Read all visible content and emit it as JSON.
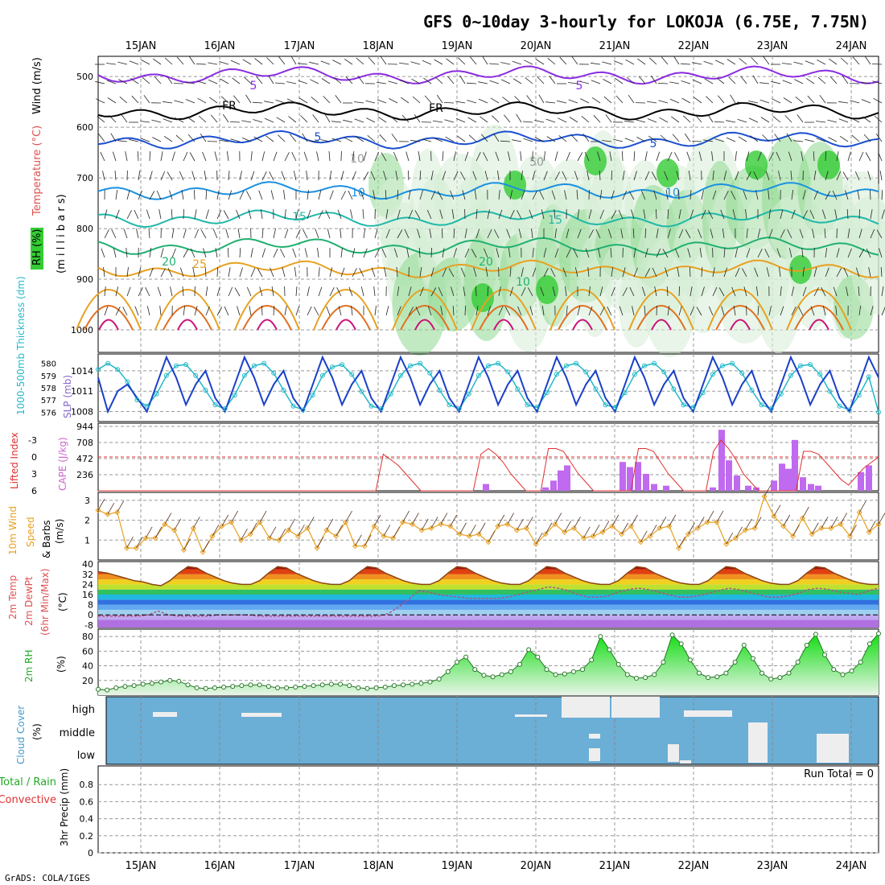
{
  "title": "GFS 0~10day 3-hourly for LOKOJA (6.75E, 7.75N)",
  "credit": "GrADS: COLA/IGES",
  "colors": {
    "rh_green": "#33cc33",
    "temp_orange": "#e8a020",
    "temp_blue": "#1a4fd0",
    "temp_purple": "#8a2be2",
    "slp_blue": "#1a3fc8",
    "thickness_cyan": "#22b8c8",
    "cape_violet": "#bf6aef",
    "lifted_red": "#e03030",
    "wind_orange": "#e8a020",
    "rh2m_green": "#22cc22",
    "cloud_bg": "#6baed6",
    "cloud_fill": "#f4f0f8",
    "grid": "#999999"
  },
  "chart_data": [
    {
      "type": "contour",
      "panel": "upper-air",
      "title": "",
      "ylabel_parts": [
        {
          "text": "RH (%)",
          "color": "#33aa33"
        },
        {
          "text": "Temperature (°C)",
          "color": "#e05050"
        },
        {
          "text": "Wind (m/s)",
          "color": "#000000"
        }
      ],
      "axis_unit": "(m i l l i b a r s)",
      "x_dates": [
        "15JAN",
        "16JAN",
        "17JAN",
        "18JAN",
        "19JAN",
        "20JAN",
        "21JAN",
        "22JAN",
        "23JAN",
        "24JAN"
      ],
      "y_levels": [
        500,
        600,
        700,
        800,
        900,
        1000
      ],
      "ylim": [
        460,
        1000
      ],
      "contour_labels": [
        "5",
        "FR",
        "FR",
        "5",
        "5",
        "5",
        "10",
        "10",
        "10",
        "15",
        "15",
        "20",
        "20",
        "25",
        "50",
        "10"
      ],
      "series": [
        {
          "name": "isotherm -5",
          "color": "#8a2be2",
          "level_mb": 497
        },
        {
          "name": "freezing level",
          "color": "#000000",
          "level_mb": 568
        },
        {
          "name": "isotherm 5",
          "color": "#1a4fd0",
          "level_mb": 625
        },
        {
          "name": "isotherm 10",
          "color": "#1a90e0",
          "level_mb": 725
        },
        {
          "name": "isotherm 15",
          "color": "#20b8a8",
          "level_mb": 780
        },
        {
          "name": "isotherm 20",
          "color": "#20b070",
          "level_mb": 835
        },
        {
          "name": "isotherm 25",
          "color": "#e8a020",
          "level_mb": 880
        }
      ]
    },
    {
      "type": "line",
      "panel": "slp-thickness",
      "ylabel_left": "1000-500mb Thickness (dm)",
      "ylabel_right": "SLP (mb)",
      "y_left_ticks": [
        576,
        577,
        578,
        579,
        580
      ],
      "y_right_ticks": [
        1008,
        1011,
        1014
      ],
      "ylim_left": [
        575.5,
        580.5
      ],
      "ylim_right": [
        1007,
        1016
      ],
      "series": [
        {
          "name": "SLP",
          "color": "#1a3fc8",
          "values": [
            1013,
            1008,
            1011,
            1012,
            1010,
            1008,
            1012,
            1016,
            1013,
            1009,
            1012,
            1014,
            1010,
            1008,
            1012,
            1016,
            1013,
            1009,
            1012,
            1014,
            1010,
            1008,
            1012,
            1016,
            1013,
            1009,
            1012,
            1014,
            1010,
            1008,
            1012,
            1016,
            1013,
            1009,
            1012,
            1014,
            1010,
            1008,
            1012,
            1016,
            1013,
            1009,
            1012,
            1014,
            1010,
            1008,
            1012,
            1016,
            1013,
            1009,
            1012,
            1014,
            1010,
            1008,
            1012,
            1016,
            1013,
            1009,
            1012,
            1014,
            1010,
            1008,
            1012,
            1016,
            1013,
            1009,
            1012,
            1014,
            1010,
            1008,
            1012,
            1016,
            1013,
            1009,
            1012,
            1014,
            1010,
            1008,
            1012,
            1016,
            1013
          ]
        },
        {
          "name": "Thickness",
          "color": "#22b8c8",
          "values": [
            579.5,
            580,
            579.5,
            578.5,
            577,
            576.5,
            577.5,
            579,
            579.8,
            579.9,
            579,
            577.8,
            576.6,
            576.3,
            577.4,
            579,
            579.8,
            580,
            579.2,
            577.8,
            576.5,
            576.2,
            577.4,
            579,
            579.7,
            579.9,
            579.1,
            577.7,
            576.5,
            576.3,
            577.5,
            579,
            579.8,
            580,
            579.2,
            577.8,
            576.6,
            576.3,
            577.5,
            579,
            579.8,
            580,
            579.3,
            577.9,
            576.6,
            576.4,
            577.6,
            579.1,
            579.8,
            580,
            579.3,
            577.9,
            576.6,
            576.4,
            577.6,
            579.1,
            579.8,
            580,
            579.3,
            577.9,
            576.6,
            576.4,
            577.6,
            579.1,
            579.8,
            580,
            579.2,
            577.8,
            576.6,
            576.3,
            577.5,
            579,
            579.8,
            579.9,
            579.1,
            577.7,
            576.5,
            576.2,
            577.4,
            578.9,
            576
          ]
        }
      ]
    },
    {
      "type": "bar",
      "panel": "cape-li",
      "ylabel_left": "Lifted Index",
      "ylabel_right": "CAPE (J/kg)",
      "y_left_ticks": [
        "-3",
        "0",
        "3",
        "6"
      ],
      "y_right_ticks": [
        236,
        472,
        708,
        944
      ],
      "ylim_left": [
        6,
        -6
      ],
      "ylim_right": [
        0,
        944
      ],
      "series": [
        {
          "name": "CAPE",
          "color": "#bf6aef",
          "values": [
            0,
            0,
            0,
            0,
            0,
            0,
            0,
            0,
            0,
            0,
            0,
            0,
            0,
            0,
            0,
            0,
            0,
            0,
            0,
            0,
            0,
            0,
            0,
            0,
            0,
            0,
            0,
            0,
            0,
            0,
            0,
            0,
            0,
            0,
            0,
            0,
            0,
            0,
            0,
            0,
            0,
            0,
            0,
            0,
            0,
            0,
            0,
            0,
            0,
            0,
            0,
            0,
            0,
            0,
            0,
            0,
            0,
            0,
            0,
            0,
            0,
            0,
            0,
            0,
            0,
            0,
            0,
            0,
            0,
            0,
            0,
            0,
            0,
            0,
            0,
            0,
            0,
            0,
            0,
            0,
            0,
            0,
            0,
            0,
            0,
            0,
            0,
            0,
            0,
            0,
            0,
            0,
            0
          ]
        },
        {
          "name": "Lifted Index",
          "color": "#e03030",
          "values": [
            6,
            6,
            6,
            6,
            6,
            6,
            6,
            6,
            6,
            6,
            6,
            6,
            6,
            6,
            6,
            6,
            6,
            6,
            6,
            6,
            6,
            6,
            6,
            6,
            6,
            6,
            6,
            6,
            6,
            6,
            6,
            6,
            6,
            6,
            6,
            6,
            6,
            6,
            -0.5,
            0.5,
            1.5,
            3,
            4.5,
            6,
            6,
            6,
            6,
            6,
            6,
            6,
            6,
            -0.5,
            -1.5,
            -0.5,
            1,
            3,
            4.5,
            6,
            6,
            6,
            -1.5,
            -1.5,
            -1,
            1,
            3,
            4.5,
            6,
            6,
            6,
            6,
            6,
            6,
            -1.5,
            -1.5,
            -1,
            1,
            3,
            4.5,
            6,
            6,
            6,
            6,
            -1,
            -3,
            -1.5,
            0.5,
            3,
            4.5,
            6,
            6,
            6,
            6,
            6,
            6,
            -1,
            -1,
            -0.5,
            1,
            2.5,
            4,
            5,
            3.5,
            2,
            1,
            0
          ]
        }
      ]
    },
    {
      "type": "line",
      "panel": "wind-10m",
      "ylabel": "10m Wind Speed & Barbs (m/s)",
      "y_ticks": [
        1,
        2,
        3
      ],
      "ylim": [
        0,
        3.4
      ],
      "series": [
        {
          "name": "10m Wind Speed",
          "color": "#e8a020",
          "values": [
            2.5,
            2.3,
            2.4,
            0.6,
            0.6,
            1.1,
            1.1,
            1.8,
            1.5,
            0.5,
            1.6,
            0.4,
            1.2,
            1.7,
            1.9,
            1,
            1.3,
            1.9,
            1.1,
            1,
            1.5,
            1.2,
            1.6,
            0.6,
            1.5,
            1.2,
            1.9,
            0.7,
            0.7,
            1.7,
            1.2,
            1.1,
            1.9,
            1.8,
            1.5,
            1.6,
            1.8,
            1.7,
            1.3,
            1.2,
            1.3,
            0.9,
            1.7,
            1.8,
            1.5,
            1.6,
            0.8,
            1.3,
            1.8,
            1.4,
            1.6,
            1.1,
            1.2,
            1.4,
            1.7,
            1.3,
            1.7,
            0.9,
            1.2,
            1.6,
            1.7,
            0.6,
            1.3,
            1.6,
            1.9,
            1.9,
            0.8,
            1.1,
            1.5,
            1.6,
            3.2,
            2.2,
            1.7,
            1.2,
            2.1,
            1.3,
            1.6,
            1.6,
            1.8,
            1.2,
            2.4,
            1.4,
            1.8
          ]
        }
      ]
    },
    {
      "type": "area",
      "panel": "temperature-2m",
      "ylabel": "2m Temp 2m DewPt (6hr Min/Max) (°C)",
      "y_ticks": [
        -8,
        0,
        8,
        16,
        24,
        32,
        40
      ],
      "ylim": [
        -10,
        42
      ],
      "series": [
        {
          "name": "2m Temp",
          "color": "#8b4513",
          "values": [
            34,
            33,
            31,
            29,
            27,
            26,
            24,
            23,
            27,
            33,
            38,
            37,
            33,
            30,
            27,
            25,
            24,
            24,
            27,
            33,
            38,
            37,
            33,
            30,
            27,
            25,
            24,
            24,
            27,
            33,
            38,
            37,
            33,
            30,
            27,
            25,
            24,
            24,
            27,
            33,
            38,
            37,
            33,
            30,
            27,
            25,
            24,
            24,
            27,
            33,
            38,
            37,
            33,
            30,
            27,
            25,
            24,
            24,
            27,
            33,
            38,
            37,
            33,
            30,
            27,
            25,
            24,
            24,
            27,
            33,
            38,
            37,
            33,
            30,
            27,
            25,
            24,
            24,
            27,
            33,
            38,
            37,
            33,
            30,
            27,
            25,
            24,
            24
          ]
        },
        {
          "name": "2m DewPt",
          "color": "#aa5588",
          "values": [
            -1,
            -1,
            -1,
            -1,
            -1,
            0,
            3,
            0,
            -1,
            -1,
            -1,
            -1,
            0,
            0,
            0,
            0,
            -1,
            -1,
            -1,
            -1,
            -1,
            -1,
            -1,
            -1,
            -1,
            -1,
            -1,
            -1,
            -1,
            1,
            6,
            12,
            19,
            18,
            16,
            15,
            14,
            13,
            13,
            13,
            13,
            14,
            16,
            18,
            20,
            22,
            21,
            19,
            16,
            14,
            14,
            15,
            18,
            20,
            21,
            20,
            18,
            16,
            14,
            14,
            15,
            17,
            19,
            21,
            20,
            18,
            16,
            14,
            14,
            15,
            17,
            20,
            21,
            20,
            18,
            17,
            16,
            19,
            21
          ]
        }
      ]
    },
    {
      "type": "area",
      "panel": "rh-2m",
      "ylabel": "2m RH (%)",
      "y_ticks": [
        20,
        40,
        60,
        80
      ],
      "ylim": [
        0,
        90
      ],
      "series": [
        {
          "name": "2m RH",
          "color": "#22cc22",
          "values": [
            8,
            7,
            10,
            12,
            13,
            15,
            16,
            18,
            20,
            19,
            14,
            10,
            9,
            10,
            11,
            12,
            13,
            14,
            14,
            12,
            10,
            10,
            11,
            12,
            13,
            14,
            15,
            15,
            13,
            10,
            9,
            10,
            11,
            13,
            14,
            15,
            16,
            18,
            22,
            32,
            45,
            52,
            35,
            27,
            25,
            28,
            32,
            42,
            62,
            52,
            35,
            28,
            29,
            32,
            35,
            48,
            80,
            62,
            42,
            28,
            23,
            24,
            28,
            45,
            82,
            70,
            48,
            30,
            24,
            25,
            30,
            45,
            68,
            50,
            30,
            22,
            24,
            30,
            45,
            68,
            83,
            55,
            35,
            28,
            33,
            45,
            70,
            84
          ]
        }
      ]
    },
    {
      "type": "heatmap",
      "panel": "cloud-cover",
      "ylabel": "Cloud Cover (%)",
      "y_ticks": [
        "high",
        "middle",
        "low"
      ],
      "series": []
    },
    {
      "type": "bar",
      "panel": "precipitation",
      "ylabel_left": "Total / Rain",
      "ylabel_left2": "Convective",
      "ylabel": "3hr Precip (mm)",
      "y_ticks": [
        "0",
        "0.2",
        "0.4",
        "0.6",
        "0.8"
      ],
      "ylim": [
        0,
        1
      ],
      "run_total": "Run Total = 0",
      "series": []
    }
  ]
}
